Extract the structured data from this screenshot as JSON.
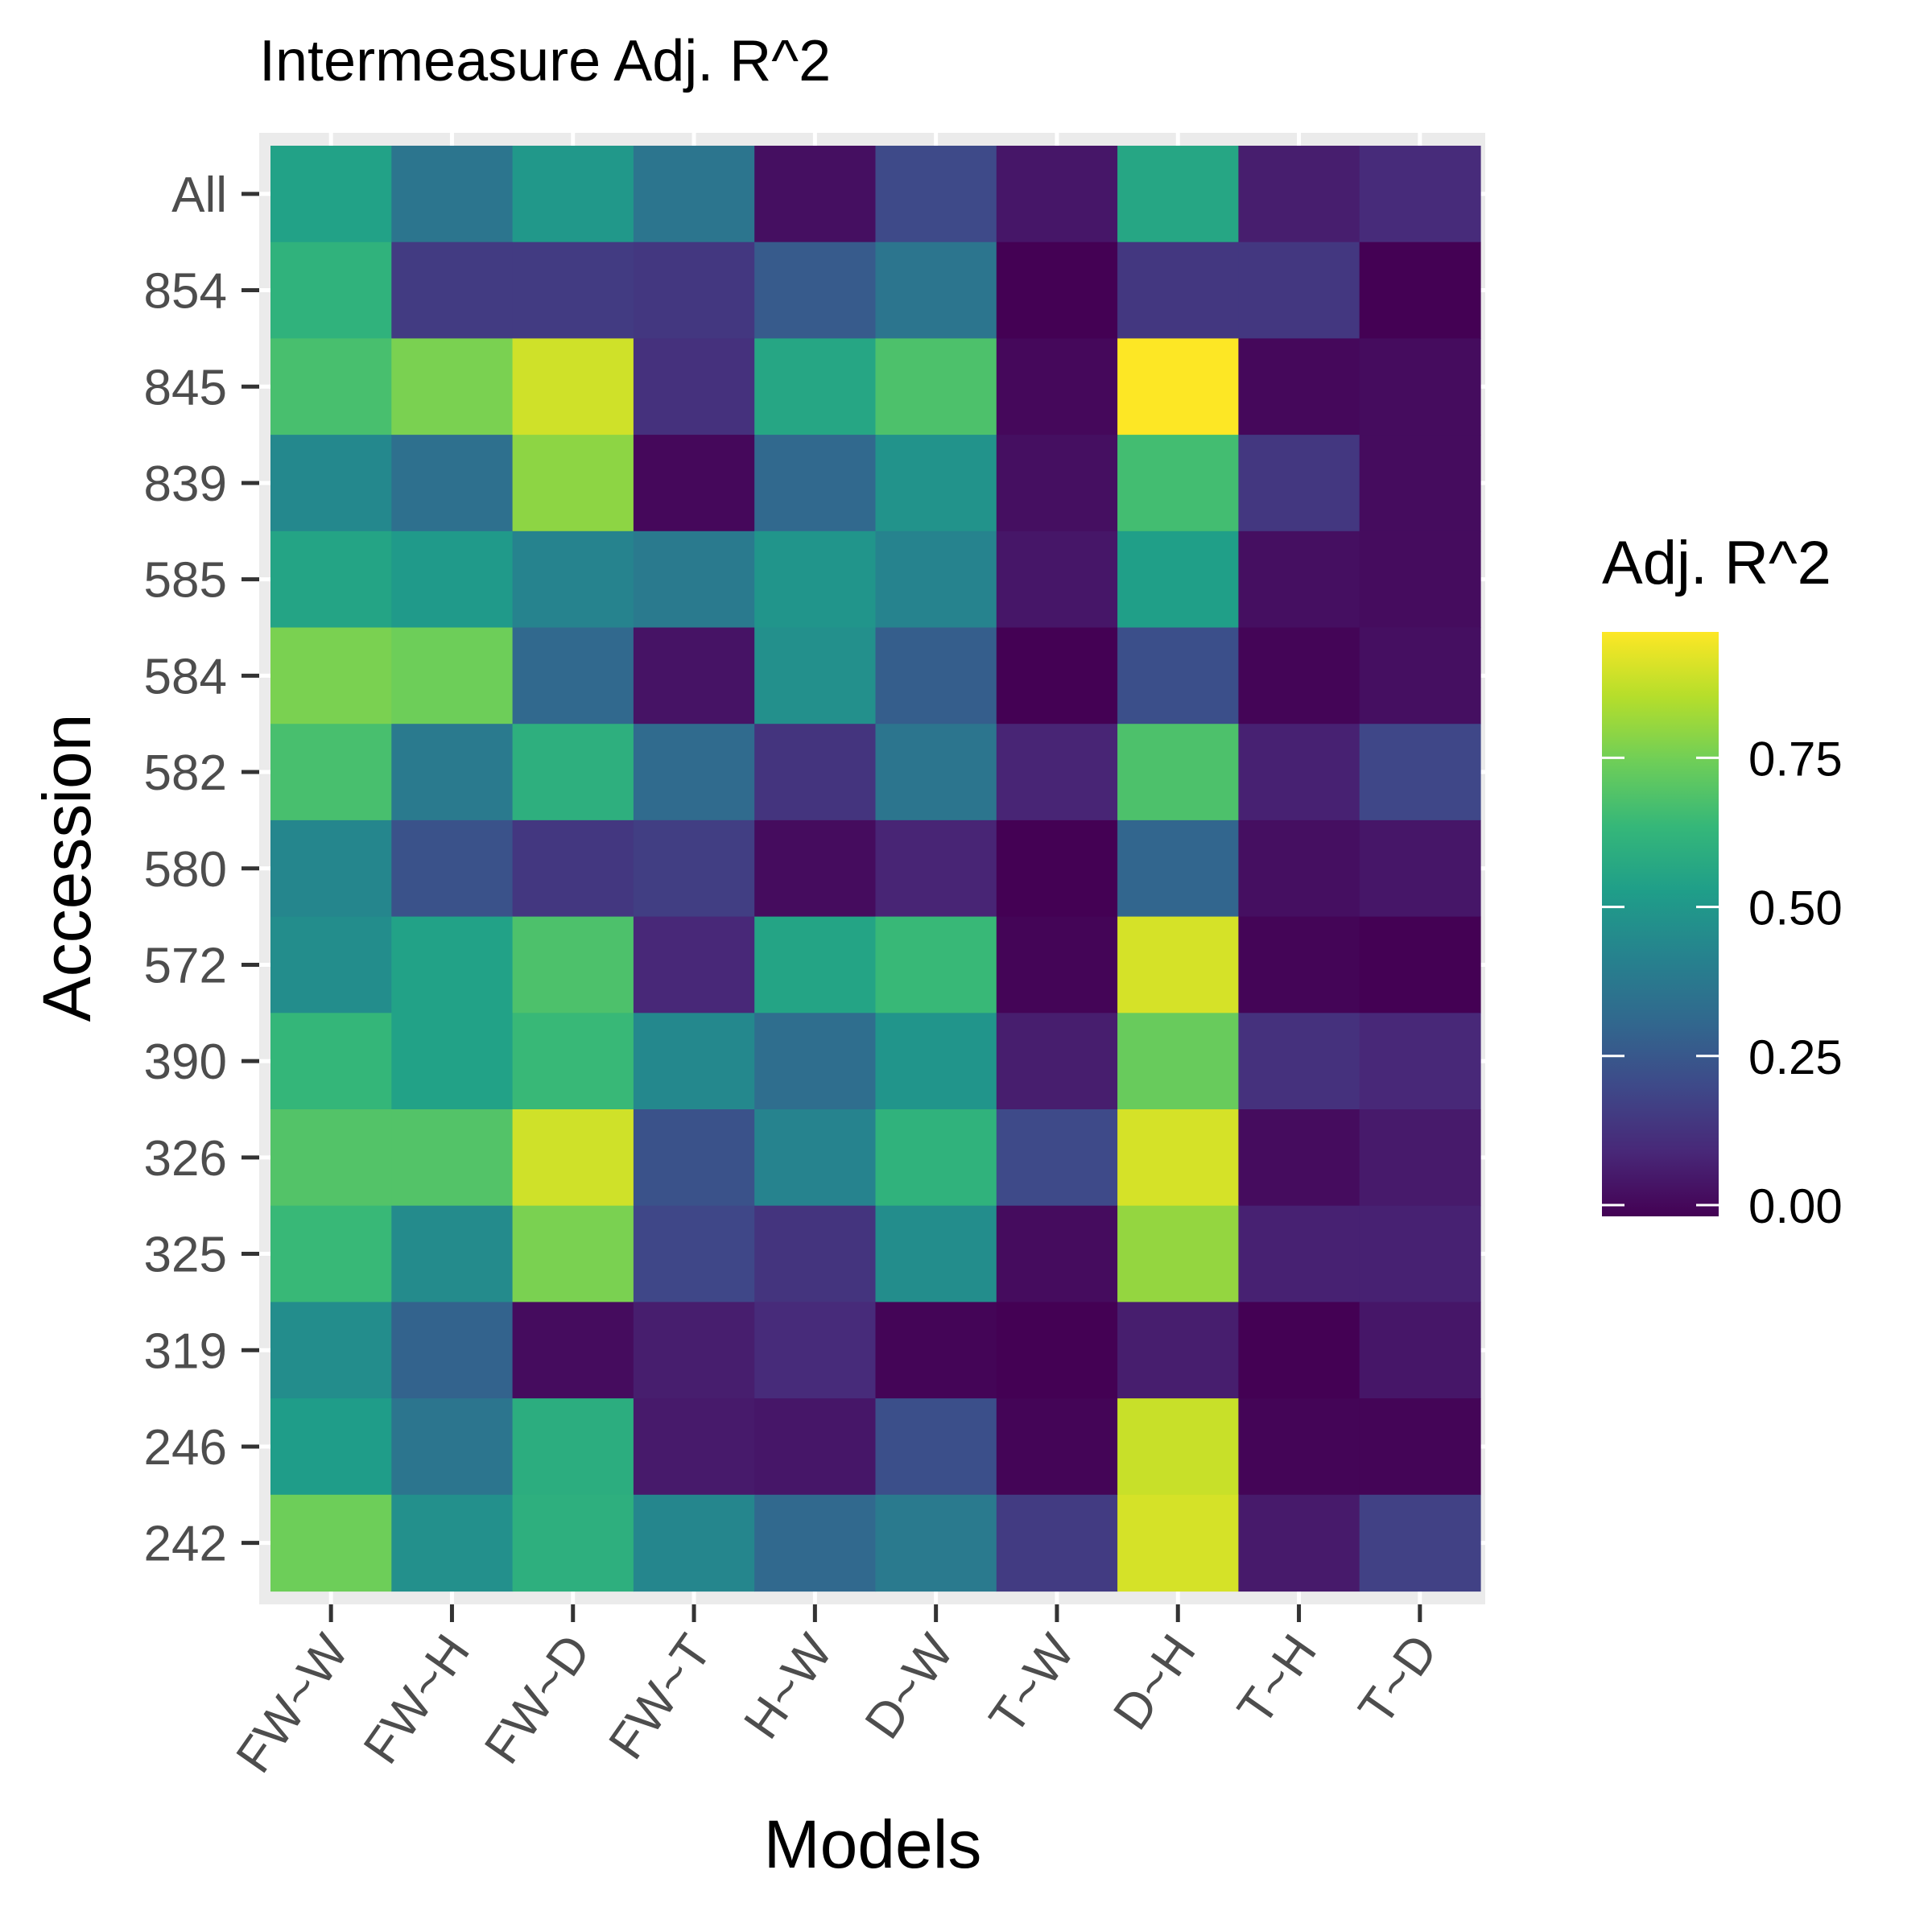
{
  "chart_data": {
    "type": "heatmap",
    "title": "Intermeasure Adj. R^2",
    "xlabel": "Models",
    "ylabel": "Accession",
    "x_categories": [
      "FW~W",
      "FW~H",
      "FW~D",
      "FW~T",
      "H~W",
      "D~W",
      "T~W",
      "D~H",
      "T~H",
      "T~D"
    ],
    "y_categories": [
      "All",
      "854",
      "845",
      "839",
      "585",
      "584",
      "582",
      "580",
      "572",
      "390",
      "326",
      "325",
      "319",
      "246",
      "242"
    ],
    "values": [
      [
        0.56,
        0.38,
        0.52,
        0.38,
        0.04,
        0.22,
        0.06,
        0.58,
        0.08,
        0.12
      ],
      [
        0.63,
        0.17,
        0.17,
        0.16,
        0.28,
        0.38,
        0.0,
        0.16,
        0.16,
        0.0
      ],
      [
        0.69,
        0.78,
        0.91,
        0.14,
        0.58,
        0.7,
        0.02,
        0.98,
        0.02,
        0.03
      ],
      [
        0.46,
        0.36,
        0.81,
        0.02,
        0.33,
        0.5,
        0.04,
        0.68,
        0.16,
        0.03
      ],
      [
        0.57,
        0.53,
        0.44,
        0.4,
        0.51,
        0.44,
        0.06,
        0.55,
        0.04,
        0.03
      ],
      [
        0.78,
        0.76,
        0.33,
        0.05,
        0.49,
        0.29,
        0.0,
        0.24,
        0.01,
        0.04
      ],
      [
        0.69,
        0.4,
        0.62,
        0.34,
        0.15,
        0.38,
        0.1,
        0.7,
        0.09,
        0.21
      ],
      [
        0.45,
        0.25,
        0.16,
        0.18,
        0.03,
        0.1,
        0.0,
        0.32,
        0.04,
        0.06
      ],
      [
        0.48,
        0.56,
        0.7,
        0.11,
        0.57,
        0.66,
        0.01,
        0.92,
        0.01,
        0.0
      ],
      [
        0.65,
        0.56,
        0.66,
        0.46,
        0.35,
        0.51,
        0.08,
        0.75,
        0.14,
        0.11
      ],
      [
        0.71,
        0.71,
        0.91,
        0.25,
        0.44,
        0.63,
        0.22,
        0.92,
        0.03,
        0.07
      ],
      [
        0.66,
        0.47,
        0.78,
        0.21,
        0.15,
        0.48,
        0.03,
        0.82,
        0.09,
        0.09
      ],
      [
        0.48,
        0.31,
        0.03,
        0.08,
        0.12,
        0.01,
        0.0,
        0.08,
        0.0,
        0.06
      ],
      [
        0.54,
        0.38,
        0.61,
        0.07,
        0.06,
        0.24,
        0.01,
        0.9,
        0.01,
        0.01
      ],
      [
        0.76,
        0.49,
        0.62,
        0.45,
        0.33,
        0.4,
        0.17,
        0.92,
        0.07,
        0.19
      ]
    ],
    "colorbar": {
      "title": "Adj. R^2",
      "range": [
        0,
        0.98
      ],
      "ticks": [
        0,
        0.25,
        0.5,
        0.75
      ],
      "tick_labels": [
        "0.00",
        "0.25",
        "0.50",
        "0.75"
      ],
      "colormap": "viridis",
      "colors": [
        "#440154",
        "#482878",
        "#3e4989",
        "#31688e",
        "#26828e",
        "#1f9e89",
        "#35b779",
        "#6ece58",
        "#b5de2b",
        "#fde725"
      ]
    },
    "grid": true,
    "panel_background": "#ebebeb",
    "legend_position": "right"
  }
}
